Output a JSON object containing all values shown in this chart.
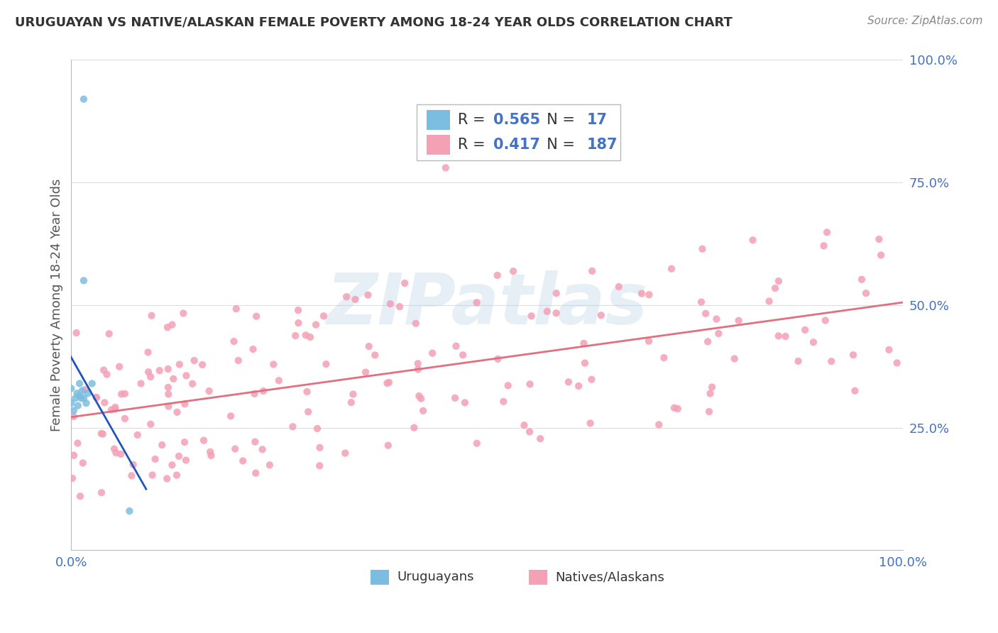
{
  "title": "URUGUAYAN VS NATIVE/ALASKAN FEMALE POVERTY AMONG 18-24 YEAR OLDS CORRELATION CHART",
  "source": "Source: ZipAtlas.com",
  "ylabel": "Female Poverty Among 18-24 Year Olds",
  "watermark": "ZIPatlas",
  "uruguayan_color": "#7bbde0",
  "native_color": "#f4a0b5",
  "reg_line_uruguayan_color": "#2255bb",
  "reg_line_native_color": "#e07080",
  "legend_r1": "0.565",
  "legend_n1": "17",
  "legend_r2": "0.417",
  "legend_n2": "187",
  "tick_color": "#4472c4",
  "title_color": "#333333",
  "source_color": "#888888",
  "grid_color": "#dddddd",
  "ylabel_color": "#555555"
}
